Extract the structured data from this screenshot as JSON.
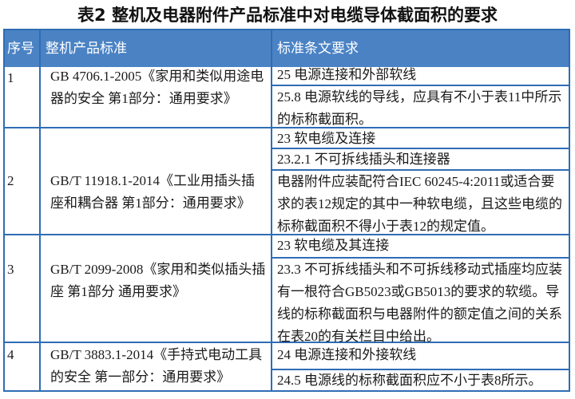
{
  "title": "表2 整机及电器附件产品标准中对电缆导体截面积的要求",
  "colors": {
    "border": "#2f6db5",
    "header_bg": "#4a82c4",
    "header_text": "#ffffff"
  },
  "headers": [
    "序号",
    "整机产品标准",
    "标准条文要求"
  ],
  "rows": [
    {
      "no": "1",
      "standard": "GB 4706.1-2005《家用和类似用途电器的安全 第1部分：通用要求》",
      "clauses": [
        "25 电源连接和外部软线",
        "25.8 电源软线的导线，应具有不小于表11中所示的标称截面积。"
      ]
    },
    {
      "no": "2",
      "standard": "GB/T 11918.1-2014《工业用插头插座和耦合器 第1部分：通用要求》",
      "clauses": [
        "23 软电缆及连接",
        "23.2.1 不可拆线插头和连接器",
        "电器附件应装配符合IEC 60245-4:2011或适合要求的表12规定的其中一种软电缆，且这些电缆的标称截面积不得小于表12的规定值。"
      ]
    },
    {
      "no": "3",
      "standard": "GB/T 2099-2008《家用和类似插头插座 第1部分 通用要求》",
      "clauses": [
        "23 软电缆及其连接",
        "23.3 不可拆线插头和不可拆线移动式插座均应装有一根符合GB5023或GB5013的要求的软缆。导线的标称截面积与电器附件的额定值之间的关系在表20的有关栏目中给出。"
      ]
    },
    {
      "no": "4",
      "standard": "GB/T 3883.1-2014《手持式电动工具的安全 第一部分：通用要求》",
      "clauses": [
        "24 电源连接和外接软线",
        "24.5 电源线的标称截面积应不小于表8所示。"
      ]
    }
  ]
}
